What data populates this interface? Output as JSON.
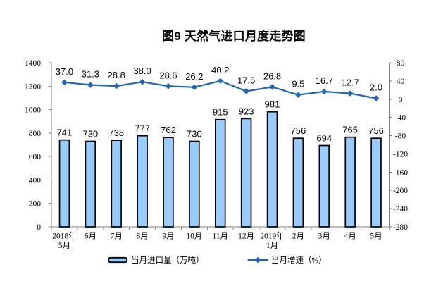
{
  "page": {
    "background": "#ffffff"
  },
  "chart_data": {
    "type": "bar+line combo",
    "title": "图9 天然气进口月度走势图",
    "categories": [
      [
        "2018年",
        "5月"
      ],
      [
        "6月"
      ],
      [
        "7月"
      ],
      [
        "8月"
      ],
      [
        "9月"
      ],
      [
        "10月"
      ],
      [
        "11月"
      ],
      [
        "12月"
      ],
      [
        "2019年",
        "1月"
      ],
      [
        "2月"
      ],
      [
        "3月"
      ],
      [
        "4月"
      ],
      [
        "5月"
      ]
    ],
    "series": [
      {
        "name": "当月进口量（万吨）",
        "type": "bar",
        "axis": "left",
        "values": [
          741,
          730,
          738,
          777,
          762,
          730,
          915,
          923,
          981,
          756,
          694,
          765,
          756
        ],
        "labels": [
          "741",
          "730",
          "738",
          "777",
          "762",
          "730",
          "915",
          "923",
          "981",
          "756",
          "694",
          "765",
          "756"
        ]
      },
      {
        "name": "当月增速（%）",
        "type": "line",
        "axis": "right",
        "marker": "diamond",
        "values": [
          37.0,
          31.3,
          28.8,
          38.0,
          28.6,
          26.2,
          40.2,
          17.5,
          26.8,
          9.5,
          16.7,
          12.7,
          2.0
        ],
        "labels": [
          "37.0",
          "31.3",
          "28.8",
          "38.0",
          "28.6",
          "26.2",
          "40.2",
          "17.5",
          "26.8",
          "9.5",
          "16.7",
          "12.7",
          "2.0"
        ]
      }
    ],
    "left_axis": {
      "min": 0,
      "max": 1400,
      "step": 200,
      "tick_labels": [
        "0",
        "200",
        "400",
        "600",
        "800",
        "1000",
        "1200",
        "1400"
      ]
    },
    "right_axis": {
      "min": -280,
      "max": 80,
      "step": 40,
      "tick_labels": [
        "80",
        "40",
        "0",
        "-40",
        "-80",
        "-120",
        "-160",
        "-200",
        "-240",
        "-280"
      ]
    },
    "grid": false,
    "legend_position": "bottom",
    "legend": {
      "items": [
        {
          "label": "当月进口量（万吨）",
          "marker": "bar-swatch"
        },
        {
          "label": "当月增速（%）",
          "marker": "line-diamond"
        }
      ]
    },
    "colors": {
      "bar_fill": "#99CCFE",
      "bar_border": "#000000",
      "line": "#2365B4",
      "text": "#000000",
      "axis": "#808080",
      "background": "#ffffff"
    }
  }
}
